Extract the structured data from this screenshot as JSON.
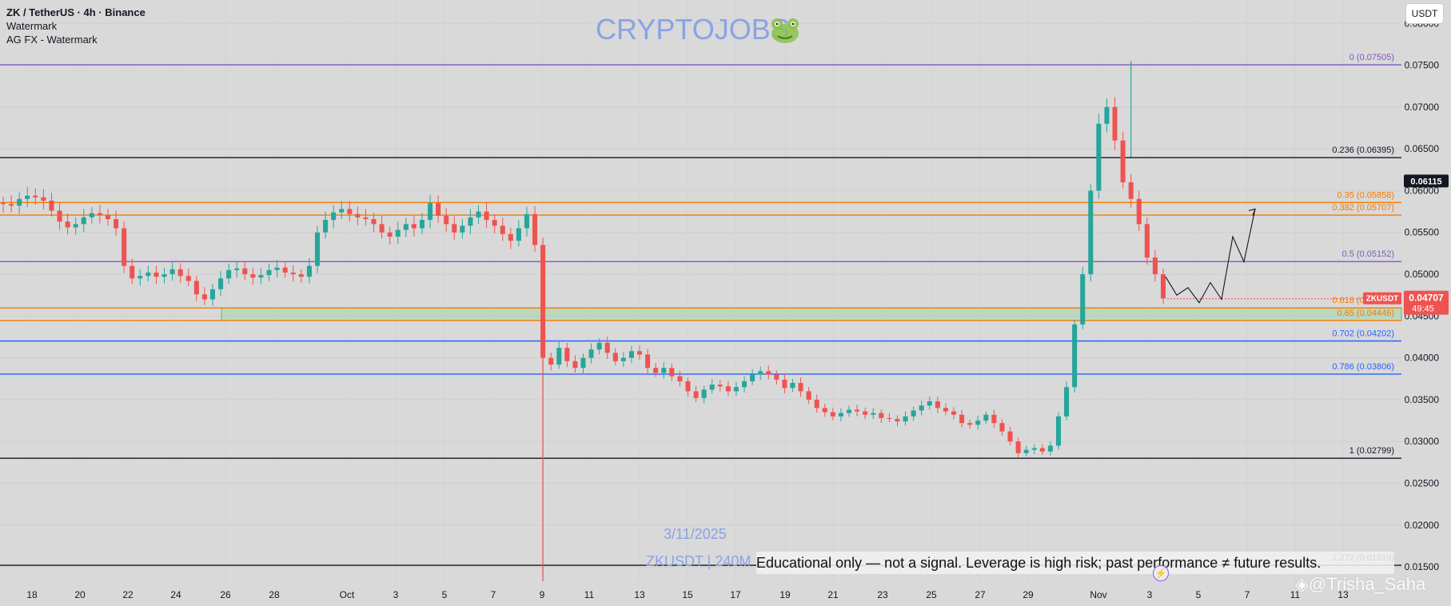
{
  "header": {
    "symbol_line": "ZK / TetherUS · 4h · Binance",
    "indicator1": "Watermark",
    "indicator2": "AG FX - Watermark"
  },
  "watermark": {
    "brand": "CRYPTOJOBS",
    "date": "3/11/2025",
    "symbol": "ZKUSDT | 240M"
  },
  "currency_button": "USDT",
  "disclaimer": "Educational only — not a signal. Leverage is high risk; past performance ≠ future results.",
  "credit": "@Trisha_Saha",
  "icons": {
    "watermark_icon": "frog-icon",
    "event_icon": "lightning-icon",
    "credit_icon": "diamond-logo-icon"
  },
  "colors": {
    "up": "#26a69a",
    "down": "#ef5350",
    "purple": "#7e57c2",
    "orange": "#f57c00",
    "blue": "#2962ff",
    "black": "#131722",
    "zone_fill": "#a5d6a7"
  },
  "chart_data": {
    "type": "candlestick",
    "interval": "4h",
    "y_axis": {
      "ticks": [
        "0.08000",
        "0.07500",
        "0.07000",
        "0.06500",
        "0.06000",
        "0.05500",
        "0.05000",
        "0.04500",
        "0.04000",
        "0.03500",
        "0.03000",
        "0.02500",
        "0.02000",
        "0.01500"
      ],
      "range": [
        0.013,
        0.0828
      ]
    },
    "x_axis": {
      "ticks": [
        "18",
        "20",
        "22",
        "24",
        "26",
        "28",
        "Oct",
        "3",
        "5",
        "7",
        "9",
        "11",
        "13",
        "15",
        "17",
        "19",
        "21",
        "23",
        "25",
        "27",
        "29",
        "Nov",
        "3",
        "5",
        "7",
        "11",
        "13"
      ]
    },
    "current_price": {
      "label": "0.04707",
      "timer": "49:45",
      "symbol": "ZKUSDT",
      "value": 0.04707
    },
    "last_high_label": {
      "label": "0.06115",
      "value": 0.06115
    },
    "fib_levels": [
      {
        "label": "0 (0.07505)",
        "value": 0.07505,
        "color": "purple"
      },
      {
        "label": "0.236 (0.06395)",
        "value": 0.06395,
        "color": "black"
      },
      {
        "label": "0.35 (0.05858)",
        "value": 0.05858,
        "color": "orange"
      },
      {
        "label": "0.382 (0.05707)",
        "value": 0.05707,
        "color": "orange"
      },
      {
        "label": "0.5 (0.05152)",
        "value": 0.05152,
        "color": "purple"
      },
      {
        "label": "0.618 (0.04597)",
        "value": 0.04597,
        "color": "orange"
      },
      {
        "label": "0.65 (0.04446)",
        "value": 0.04446,
        "color": "orange"
      },
      {
        "label": "0.702 (0.04202)",
        "value": 0.04202,
        "color": "blue"
      },
      {
        "label": "0.786 (0.03806)",
        "value": 0.03806,
        "color": "blue"
      },
      {
        "label": "1 (0.02799)",
        "value": 0.02799,
        "color": "black"
      },
      {
        "label": "1.272 (0.01519)",
        "value": 0.01519,
        "color": "black"
      }
    ],
    "zone": {
      "low": 0.04446,
      "high": 0.04597,
      "from_tick": "26",
      "to_tick": "end"
    },
    "series": [
      {
        "name": "ZKUSDT",
        "close_path": [
          0.0584,
          0.0582,
          0.059,
          0.0594,
          0.0592,
          0.0588,
          0.0576,
          0.0563,
          0.0556,
          0.056,
          0.0568,
          0.0573,
          0.0571,
          0.0566,
          0.0555,
          0.051,
          0.0495,
          0.0498,
          0.0502,
          0.0497,
          0.05,
          0.0506,
          0.0498,
          0.0492,
          0.0476,
          0.047,
          0.0482,
          0.0495,
          0.0505,
          0.0507,
          0.05,
          0.0496,
          0.0499,
          0.0505,
          0.0508,
          0.0502,
          0.05,
          0.0497,
          0.051,
          0.055,
          0.0565,
          0.0574,
          0.0578,
          0.0572,
          0.0568,
          0.0566,
          0.056,
          0.055,
          0.0545,
          0.0553,
          0.056,
          0.0555,
          0.0565,
          0.0585,
          0.057,
          0.056,
          0.055,
          0.0558,
          0.0568,
          0.0575,
          0.0565,
          0.0558,
          0.0548,
          0.054,
          0.0555,
          0.0572,
          0.0535,
          0.04,
          0.0392,
          0.0412,
          0.0396,
          0.0388,
          0.04,
          0.041,
          0.0418,
          0.0406,
          0.0396,
          0.04,
          0.0408,
          0.0404,
          0.0388,
          0.0382,
          0.0388,
          0.0378,
          0.0372,
          0.036,
          0.0352,
          0.0362,
          0.0368,
          0.0366,
          0.036,
          0.0365,
          0.0372,
          0.038,
          0.0384,
          0.038,
          0.0374,
          0.0364,
          0.037,
          0.036,
          0.035,
          0.034,
          0.0335,
          0.033,
          0.0334,
          0.0338,
          0.0336,
          0.0332,
          0.0334,
          0.0328,
          0.0327,
          0.0324,
          0.033,
          0.0337,
          0.0343,
          0.0348,
          0.034,
          0.0336,
          0.0332,
          0.0322,
          0.032,
          0.0325,
          0.0332,
          0.0322,
          0.0312,
          0.03,
          0.0286,
          0.029,
          0.0292,
          0.0288,
          0.0295,
          0.033,
          0.0365,
          0.044,
          0.05,
          0.06,
          0.068,
          0.07,
          0.066,
          0.061,
          0.059,
          0.056,
          0.052,
          0.05,
          0.0471
        ]
      }
    ],
    "projection_path": [
      0.0497,
      0.0475,
      0.0484,
      0.0466,
      0.049,
      0.047,
      0.0545,
      0.0515,
      0.0578
    ]
  }
}
